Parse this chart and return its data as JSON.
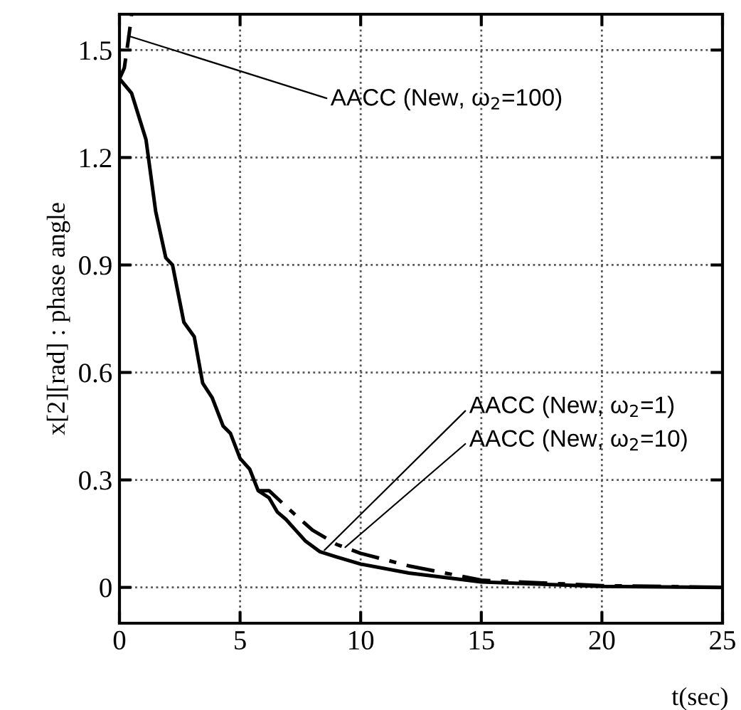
{
  "chart_data": {
    "type": "line",
    "xlabel": "t(sec)",
    "ylabel": "x[2][rad] : phase angle",
    "xlim": [
      0,
      25
    ],
    "ylim": [
      -0.1,
      1.6
    ],
    "xticks": [
      0,
      5,
      10,
      15,
      20,
      25
    ],
    "yticks": [
      0,
      0.3,
      0.6,
      0.9,
      1.2,
      1.5
    ],
    "grid": true,
    "marker": "none",
    "series": [
      {
        "color": "#000000",
        "line_style": "solid",
        "x": [
          0,
          0.5,
          1.1,
          1.5,
          1.92,
          2.2,
          2.67,
          3.1,
          3.45,
          3.84,
          4.3,
          4.6,
          5,
          5.4,
          5.75,
          6.2,
          6.55,
          6.9,
          7.3,
          7.7,
          8.3,
          9,
          10,
          12,
          15,
          20,
          25
        ],
        "values": [
          1.42,
          1.38,
          1.25,
          1.05,
          0.92,
          0.9,
          0.74,
          0.7,
          0.57,
          0.53,
          0.45,
          0.43,
          0.36,
          0.33,
          0.27,
          0.25,
          0.21,
          0.19,
          0.16,
          0.13,
          0.1,
          0.085,
          0.065,
          0.04,
          0.015,
          0.003,
          0
        ]
      },
      {
        "color": "#000000",
        "line_style": "dashdot",
        "x": [
          5.75,
          6.2,
          7,
          7.5,
          8,
          9,
          10,
          12,
          15,
          20,
          25
        ],
        "values": [
          0.27,
          0.27,
          0.22,
          0.19,
          0.16,
          0.12,
          0.095,
          0.06,
          0.02,
          0.005,
          0
        ]
      },
      {
        "color": "#000000",
        "line_style": "dashed",
        "x": [
          0,
          0.2,
          0.35,
          0.45,
          0.5
        ],
        "values": [
          1.42,
          1.45,
          1.52,
          1.57,
          1.6
        ]
      }
    ],
    "annotations": [
      {
        "text": "AACC (New, ω$_{2}$=100)",
        "x": 0.35,
        "y": 1.54
      },
      {
        "text": "AACC (New, ω$_{2}$=1)",
        "x": 8.5,
        "y": 0.104
      },
      {
        "text": "AACC (New, ω$_{2}$=10)",
        "x": 9.36,
        "y": 0.112
      }
    ]
  }
}
